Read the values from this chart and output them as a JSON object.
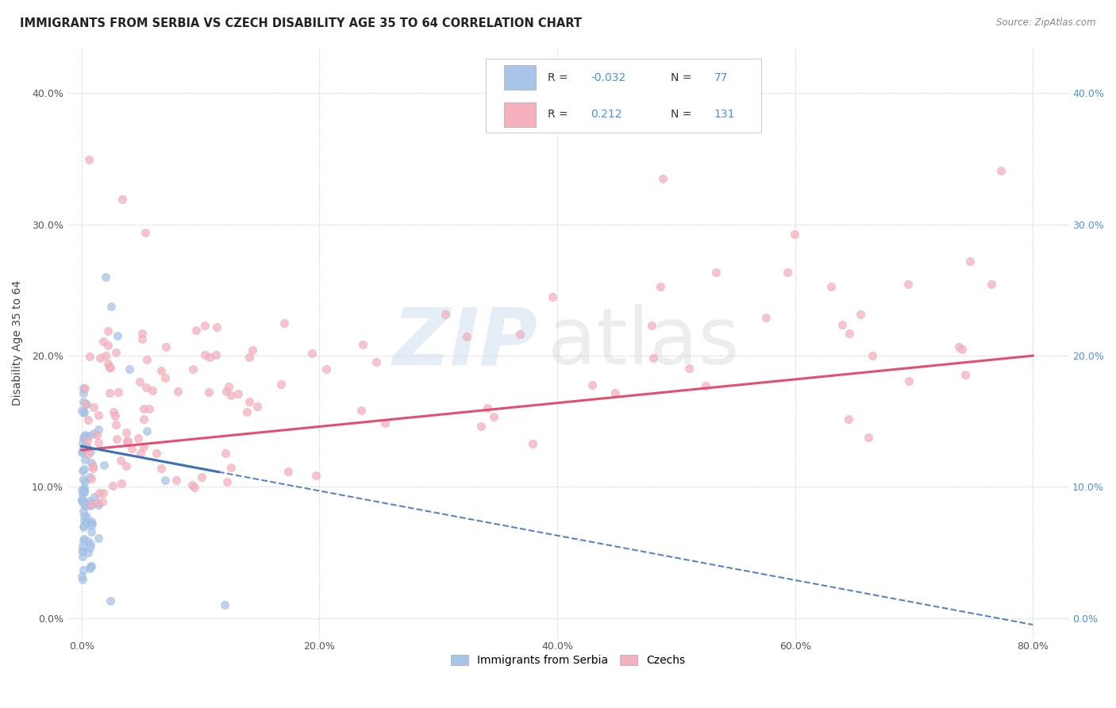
{
  "title": "IMMIGRANTS FROM SERBIA VS CZECH DISABILITY AGE 35 TO 64 CORRELATION CHART",
  "source": "Source: ZipAtlas.com",
  "xlabel_ticks": [
    "0.0%",
    "20.0%",
    "40.0%",
    "60.0%",
    "80.0%"
  ],
  "ylabel_ticks": [
    "0.0%",
    "10.0%",
    "20.0%",
    "30.0%",
    "40.0%"
  ],
  "xlabel_tick_vals": [
    0.0,
    0.2,
    0.4,
    0.6,
    0.8
  ],
  "ylabel_tick_vals": [
    0.0,
    0.1,
    0.2,
    0.3,
    0.4
  ],
  "xlim": [
    -0.012,
    0.83
  ],
  "ylim": [
    -0.015,
    0.435
  ],
  "ylabel": "Disability Age 35 to 64",
  "legend_labels": [
    "Immigrants from Serbia",
    "Czechs"
  ],
  "serbia_R": -0.032,
  "serbia_N": 77,
  "czech_R": 0.212,
  "czech_N": 131,
  "serbia_color": "#a8c4e8",
  "czech_color": "#f5b0be",
  "serbia_line_color": "#3a6fba",
  "czech_line_color": "#e05070",
  "watermark_zip": "ZIP",
  "watermark_atlas": "atlas",
  "background_color": "#ffffff",
  "grid_color": "#cccccc",
  "title_fontsize": 10.5,
  "axis_label_fontsize": 10,
  "tick_fontsize": 9,
  "right_tick_color": "#4e90d8"
}
